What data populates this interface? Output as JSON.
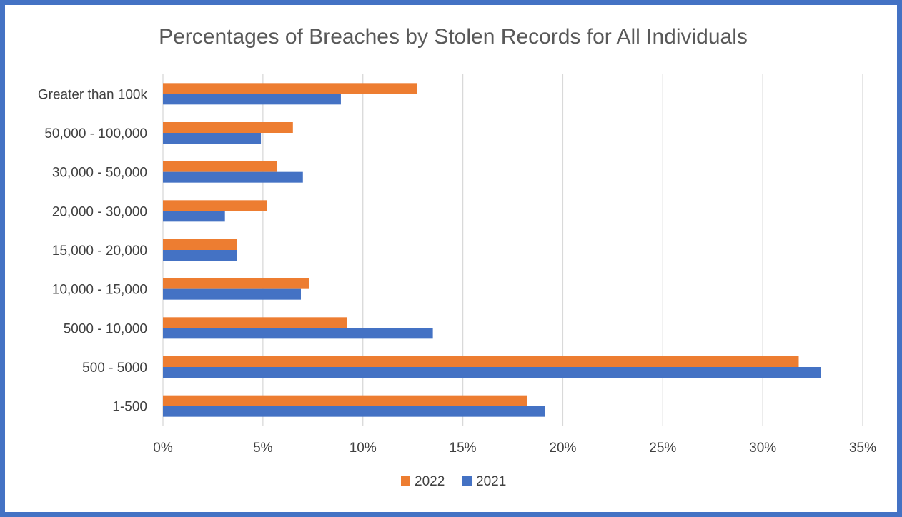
{
  "chart_data": {
    "type": "bar",
    "orientation": "horizontal",
    "title": "Percentages of Breaches by Stolen Records for All Individuals",
    "xlabel": "",
    "ylabel": "",
    "categories": [
      "Greater than 100k",
      "50,000 - 100,000",
      "30,000 - 50,000",
      "20,000 - 30,000",
      "15,000 - 20,000",
      "10,000 - 15,000",
      "5000 - 10,000",
      "500 - 5000",
      "1-500"
    ],
    "series": [
      {
        "name": "2022",
        "color": "#ed7d31",
        "values": [
          12.7,
          6.5,
          5.7,
          5.2,
          3.7,
          7.3,
          9.2,
          31.8,
          18.2
        ]
      },
      {
        "name": "2021",
        "color": "#4472c4",
        "values": [
          8.9,
          4.9,
          7.0,
          3.1,
          3.7,
          6.9,
          13.5,
          32.9,
          19.1
        ]
      }
    ],
    "xlim": [
      0,
      35
    ],
    "xticks": [
      0,
      5,
      10,
      15,
      20,
      25,
      30,
      35
    ],
    "xtick_labels": [
      "0%",
      "5%",
      "10%",
      "15%",
      "20%",
      "25%",
      "30%",
      "35%"
    ],
    "grid": "vertical",
    "legend": "bottom",
    "legend_order": [
      "2022",
      "2021"
    ]
  }
}
